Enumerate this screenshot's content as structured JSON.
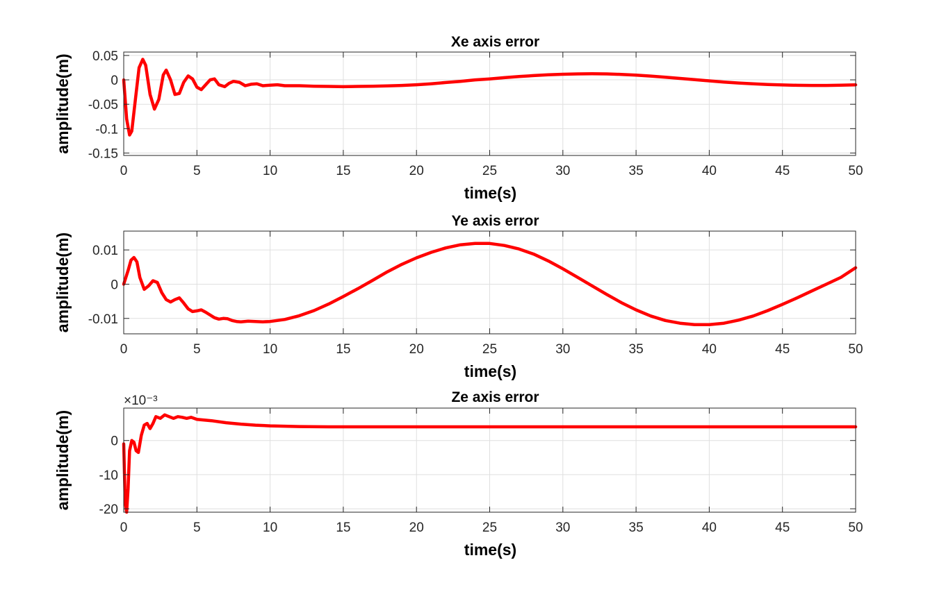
{
  "colors": {
    "line": "#ff0000",
    "grid": "#dfdfdf",
    "axis": "#262626"
  },
  "chart_data": [
    {
      "type": "line",
      "title": "Xe axis error",
      "xlabel": "time(s)",
      "ylabel": "amplitude(m)",
      "xlim": [
        0,
        50
      ],
      "ylim": [
        -0.155,
        0.057
      ],
      "grid": true,
      "xticks": [
        0,
        5,
        10,
        15,
        20,
        25,
        30,
        35,
        40,
        45,
        50
      ],
      "xtick_labels": [
        "0",
        "5",
        "10",
        "15",
        "20",
        "25",
        "30",
        "35",
        "40",
        "45",
        "50"
      ],
      "yticks": [
        -0.15,
        -0.1,
        -0.05,
        0,
        0.05
      ],
      "ytick_labels": [
        "-0.15",
        "-0.1",
        "-0.05",
        "0",
        "0.05"
      ],
      "exponent_label": "",
      "series": [
        {
          "x": [
            0,
            0.2,
            0.4,
            0.55,
            0.8,
            1.05,
            1.3,
            1.5,
            1.8,
            2.1,
            2.4,
            2.7,
            2.9,
            3.2,
            3.5,
            3.8,
            4.1,
            4.4,
            4.7,
            5,
            5.3,
            5.6,
            5.9,
            6.2,
            6.5,
            6.9,
            7.2,
            7.5,
            7.9,
            8.3,
            8.7,
            9.1,
            9.5,
            10,
            10.5,
            11,
            12,
            13,
            14,
            15,
            16,
            17,
            18,
            19,
            20,
            21,
            22,
            23,
            24,
            25,
            26,
            27,
            28,
            29,
            30,
            31,
            32,
            33,
            34,
            35,
            36,
            37,
            38,
            39,
            40,
            41,
            42,
            43,
            44,
            45,
            46,
            47,
            48,
            49,
            50
          ],
          "y": [
            0,
            -0.08,
            -0.113,
            -0.105,
            -0.04,
            0.025,
            0.042,
            0.03,
            -0.03,
            -0.06,
            -0.04,
            0.01,
            0.02,
            0,
            -0.03,
            -0.028,
            -0.005,
            0.008,
            0.002,
            -0.015,
            -0.02,
            -0.01,
            0,
            0.002,
            -0.01,
            -0.014,
            -0.007,
            -0.003,
            -0.005,
            -0.012,
            -0.009,
            -0.008,
            -0.012,
            -0.011,
            -0.01,
            -0.012,
            -0.012,
            -0.013,
            -0.0135,
            -0.014,
            -0.0135,
            -0.013,
            -0.0125,
            -0.0115,
            -0.01,
            -0.008,
            -0.0055,
            -0.003,
            0,
            0.002,
            0.0045,
            0.0068,
            0.0088,
            0.0105,
            0.0115,
            0.0122,
            0.0125,
            0.0122,
            0.0112,
            0.0098,
            0.0078,
            0.0055,
            0.003,
            0.0005,
            -0.002,
            -0.0045,
            -0.0065,
            -0.0082,
            -0.0095,
            -0.0105,
            -0.0112,
            -0.0115,
            -0.0115,
            -0.011,
            -0.0102
          ]
        }
      ]
    },
    {
      "type": "line",
      "title": "Ye axis error",
      "xlabel": "time(s)",
      "ylabel": "amplitude(m)",
      "xlim": [
        0,
        50
      ],
      "ylim": [
        -0.0145,
        0.0155
      ],
      "grid": true,
      "xticks": [
        0,
        5,
        10,
        15,
        20,
        25,
        30,
        35,
        40,
        45,
        50
      ],
      "xtick_labels": [
        "0",
        "5",
        "10",
        "15",
        "20",
        "25",
        "30",
        "35",
        "40",
        "45",
        "50"
      ],
      "yticks": [
        -0.01,
        0,
        0.01
      ],
      "ytick_labels": [
        "-0.01",
        "0",
        "0.01"
      ],
      "exponent_label": "",
      "series": [
        {
          "x": [
            0,
            0.3,
            0.5,
            0.7,
            0.9,
            1.1,
            1.4,
            1.7,
            2,
            2.3,
            2.6,
            2.9,
            3.2,
            3.5,
            3.8,
            4.1,
            4.4,
            4.7,
            5,
            5.3,
            5.6,
            5.9,
            6.2,
            6.5,
            6.8,
            7.1,
            7.4,
            7.7,
            8,
            8.5,
            9,
            9.5,
            10,
            11,
            12,
            13,
            14,
            15,
            16,
            17,
            18,
            19,
            20,
            21,
            22,
            23,
            24,
            25,
            26,
            27,
            28,
            29,
            30,
            31,
            32,
            33,
            34,
            35,
            36,
            37,
            38,
            39,
            40,
            41,
            42,
            43,
            44,
            45,
            46,
            47,
            48,
            49,
            50
          ],
          "y": [
            0,
            0.004,
            0.007,
            0.0078,
            0.0065,
            0.002,
            -0.0015,
            -0.0005,
            0.001,
            0.0005,
            -0.0025,
            -0.0045,
            -0.0052,
            -0.0045,
            -0.004,
            -0.0055,
            -0.0072,
            -0.008,
            -0.0078,
            -0.0075,
            -0.0082,
            -0.009,
            -0.0098,
            -0.0102,
            -0.01,
            -0.0101,
            -0.0106,
            -0.0109,
            -0.011,
            -0.0108,
            -0.0109,
            -0.011,
            -0.0109,
            -0.0103,
            -0.0092,
            -0.0077,
            -0.0058,
            -0.0036,
            -0.0013,
            0.0011,
            0.0036,
            0.0058,
            0.0077,
            0.0093,
            0.0106,
            0.0115,
            0.0119,
            0.0119,
            0.0113,
            0.0103,
            0.0088,
            0.0068,
            0.0045,
            0.002,
            -0.0005,
            -0.003,
            -0.0054,
            -0.0075,
            -0.0093,
            -0.0106,
            -0.0114,
            -0.0118,
            -0.0118,
            -0.0114,
            -0.0105,
            -0.0093,
            -0.0077,
            -0.0059,
            -0.004,
            -0.002,
            0,
            0.002,
            0.0048
          ]
        }
      ]
    },
    {
      "type": "line",
      "title": "Ze axis error",
      "xlabel": "time(s)",
      "ylabel": "amplitude(m)",
      "xlim": [
        0,
        50
      ],
      "ylim": [
        -21,
        9.5
      ],
      "grid": true,
      "xticks": [
        0,
        5,
        10,
        15,
        20,
        25,
        30,
        35,
        40,
        45,
        50
      ],
      "xtick_labels": [
        "0",
        "5",
        "10",
        "15",
        "20",
        "25",
        "30",
        "35",
        "40",
        "45",
        "50"
      ],
      "yticks": [
        -20,
        -10,
        0
      ],
      "ytick_labels": [
        "-20",
        "-10",
        "0"
      ],
      "exponent_label": "×10⁻³",
      "series": [
        {
          "x": [
            0,
            0.1,
            0.2,
            0.3,
            0.4,
            0.55,
            0.7,
            0.85,
            1,
            1.2,
            1.4,
            1.6,
            1.8,
            2,
            2.2,
            2.5,
            2.8,
            3.1,
            3.4,
            3.7,
            4,
            4.3,
            4.6,
            5,
            5.5,
            6,
            7,
            8,
            9,
            10,
            11,
            12,
            14,
            16,
            20,
            25,
            30,
            35,
            40,
            45,
            50
          ],
          "y": [
            -1,
            -18,
            -21,
            -14,
            -3,
            0,
            -0.5,
            -3,
            -3.5,
            1.5,
            4.5,
            5,
            3.5,
            5,
            7,
            6.5,
            7.5,
            7,
            6.5,
            7,
            6.8,
            6.5,
            6.8,
            6.2,
            6,
            5.8,
            5.2,
            4.8,
            4.5,
            4.3,
            4.2,
            4.1,
            4,
            4,
            4,
            4,
            4,
            4,
            4,
            4,
            4
          ]
        }
      ]
    }
  ]
}
